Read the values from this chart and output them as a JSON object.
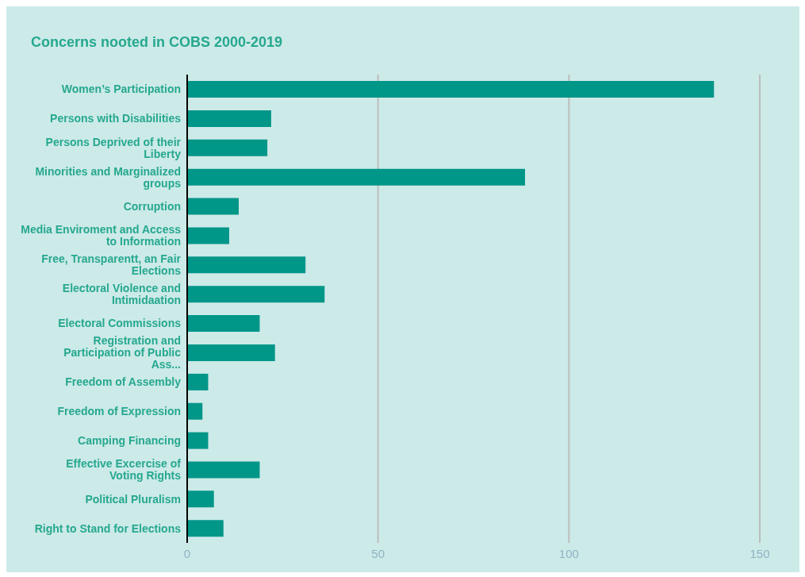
{
  "chart_data": {
    "type": "bar",
    "orientation": "horizontal",
    "title": "Concerns nooted in COBS 2000-2019",
    "categories": [
      "Women’s Participation",
      "Persons with Disabilities",
      "Persons Deprived of their Liberty",
      "Minorities and Marginalized groups",
      "Corruption",
      "Media Enviroment and Access to Information",
      "Free, Transparentt, an Fair Elections",
      "Electoral Violence and Intimidaation",
      "Electoral Commissions",
      "Registration and Participation of Public Ass...",
      "Freedom of Assembly",
      "Freedom of Expression",
      "Camping Financing",
      "Effective Excercise of Voting Rights",
      "Political Pluralism",
      "Right to Stand for Elections"
    ],
    "values": [
      138,
      22,
      21,
      88.5,
      13.5,
      11,
      31,
      36,
      19,
      23,
      5.5,
      4,
      5.5,
      19,
      7,
      9.5
    ],
    "color": "#009688",
    "xlim": [
      0,
      150
    ],
    "xticks": [
      0,
      50,
      100,
      150
    ],
    "grid": "x"
  }
}
